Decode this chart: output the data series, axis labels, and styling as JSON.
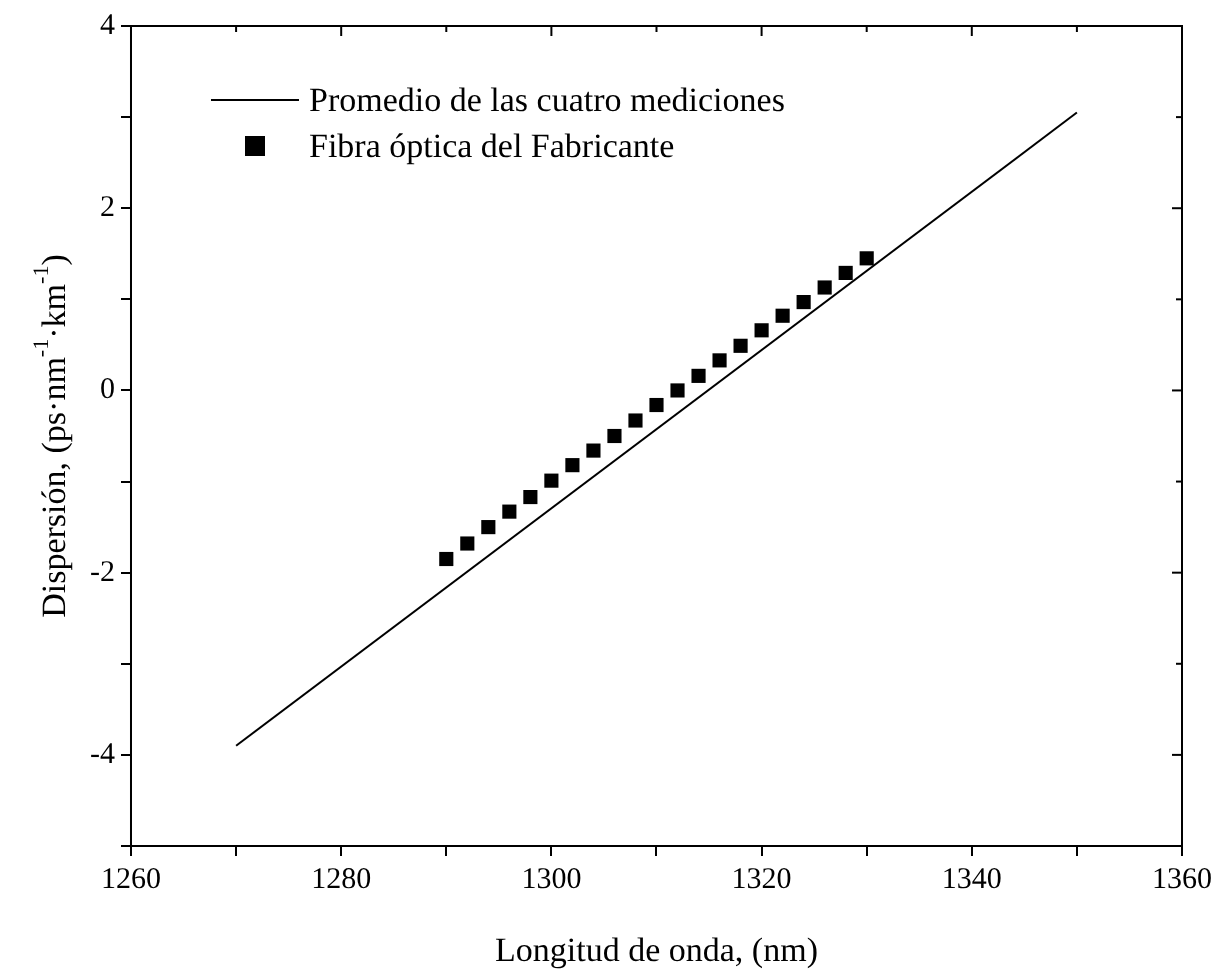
{
  "chart_data": {
    "type": "scatter",
    "xlabel": "Longitud de onda, (nm)",
    "ylabel": "Dispersión, (ps·nm$^{-1}$·km$^{-1}$)",
    "xlim": [
      1260,
      1360
    ],
    "ylim": [
      -5,
      4
    ],
    "xticks": [
      1260,
      {
        "value": 1270,
        "label": null
      },
      1280,
      {
        "value": 1290,
        "label": null
      },
      1300,
      {
        "value": 1310,
        "label": null
      },
      1320,
      {
        "value": 1330,
        "label": null
      },
      1340,
      {
        "value": 1350,
        "label": null
      },
      1360
    ],
    "yticks": [
      {
        "value": -5,
        "label": null
      },
      -4,
      {
        "value": -3,
        "label": null
      },
      -2,
      {
        "value": -1,
        "label": null
      },
      0,
      {
        "value": 1,
        "label": null
      },
      2,
      {
        "value": 3,
        "label": null
      },
      4
    ],
    "grid": false,
    "legend": "top left",
    "series": [
      {
        "name": "Promedio de las cuatro mediciones",
        "type": "line",
        "color": "#000000",
        "marker": "none",
        "line_style": "solid",
        "x": [
          1270,
          1350
        ],
        "values": [
          -3.9,
          3.05
        ]
      },
      {
        "name": "Fibra óptica del Fabricante",
        "color": "#000000",
        "marker": "square",
        "x": [
          1290,
          1292,
          1294,
          1296,
          1298,
          1300,
          1302,
          1304,
          1306,
          1308,
          1310,
          1312,
          1314,
          1316,
          1318,
          1320,
          1322,
          1324,
          1326,
          1328,
          1330
        ],
        "values": [
          -1.85,
          -1.68,
          -1.5,
          -1.33,
          -1.17,
          -0.99,
          -0.82,
          -0.66,
          -0.5,
          -0.33,
          -0.16,
          0,
          0.16,
          0.33,
          0.49,
          0.66,
          0.82,
          0.97,
          1.13,
          1.29,
          1.45
        ]
      }
    ]
  }
}
